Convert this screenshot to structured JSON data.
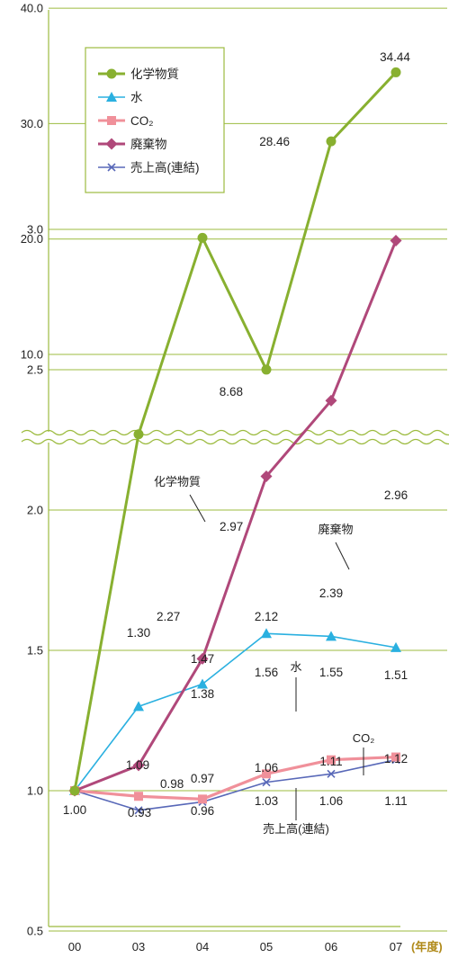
{
  "chart_data": {
    "type": "line",
    "categories": [
      "00",
      "03",
      "04",
      "05",
      "06",
      "07"
    ],
    "x_unit": "(年度)",
    "axis_break": true,
    "y_ticks_upper": [
      "10.0",
      "20.0",
      "30.0",
      "40.0"
    ],
    "y_ticks_lower": [
      "0.5",
      "1.0",
      "1.5",
      "2.0",
      "2.5",
      "3.0"
    ],
    "ylim_lower": [
      0,
      3.4
    ],
    "ylim_upper": [
      5,
      40
    ],
    "grid": true,
    "legend_position": "top-left",
    "series": [
      {
        "name": "化学物質",
        "color": "#88b030",
        "marker": "circle",
        "values": [
          1.0,
          2.27,
          2.97,
          8.68,
          28.46,
          34.44
        ],
        "labels": [
          "1.00",
          "2.27",
          "2.97",
          "8.68",
          "28.46",
          "34.44"
        ]
      },
      {
        "name": "水",
        "color": "#2ab0e0",
        "marker": "triangle",
        "values": [
          1.0,
          1.3,
          1.38,
          1.56,
          1.55,
          1.51
        ],
        "labels": [
          "",
          "1.30",
          "1.38",
          "1.56",
          "1.55",
          "1.51"
        ]
      },
      {
        "name": "CO₂",
        "color": "#f0909a",
        "marker": "square",
        "values": [
          1.0,
          0.98,
          0.97,
          1.06,
          1.11,
          1.12
        ],
        "labels": [
          "",
          "0.98",
          "0.97",
          "1.06",
          "1.11",
          "1.12"
        ]
      },
      {
        "name": "廃棄物",
        "color": "#b0487a",
        "marker": "diamond",
        "values": [
          1.0,
          1.09,
          1.47,
          2.12,
          2.39,
          2.96
        ],
        "labels": [
          "",
          "1.09",
          "1.47",
          "2.12",
          "2.39",
          "2.96"
        ]
      },
      {
        "name": "売上高(連結)",
        "color": "#5868b8",
        "marker": "x",
        "values": [
          1.0,
          0.93,
          0.96,
          1.03,
          1.06,
          1.11
        ],
        "labels": [
          "",
          "0.93",
          "0.96",
          "1.03",
          "1.06",
          "1.11"
        ]
      }
    ],
    "callouts": [
      {
        "text": "化学物質",
        "series": "化学物質"
      },
      {
        "text": "廃棄物",
        "series": "廃棄物"
      },
      {
        "text": "水",
        "series": "水"
      },
      {
        "text": "CO₂",
        "series": "CO₂"
      },
      {
        "text": "売上高(連結)",
        "series": "売上高(連結)"
      }
    ]
  }
}
